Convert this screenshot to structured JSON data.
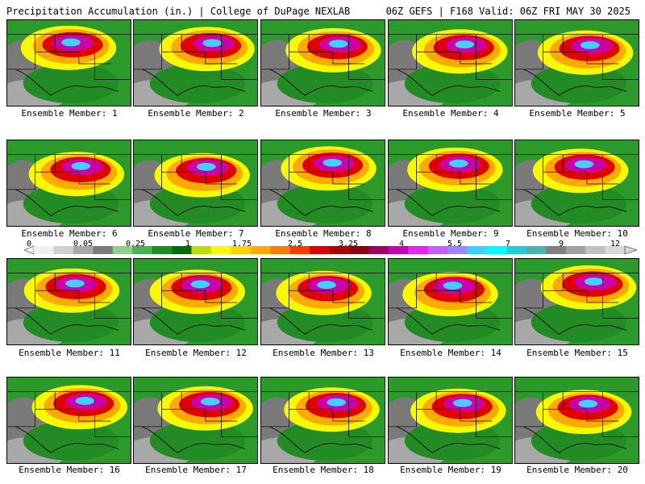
{
  "header": {
    "left": "Precipitation Accumulation (in.) | College of DuPage NEXLAB",
    "right": "06Z GEFS | F168 Valid: 06Z FRI MAY 30 2025"
  },
  "colorbar": {
    "labels": [
      "0",
      "0.05",
      "0.25",
      "1",
      "1.75",
      "2.5",
      "3.25",
      "4",
      "5.5",
      "7",
      "9",
      "12"
    ],
    "colors": [
      "#f0f0f0",
      "#d0d0d0",
      "#a8a8a8",
      "#7a7a7a",
      "#8fce8f",
      "#4fb04f",
      "#238b23",
      "#0c6a0c",
      "#b8e000",
      "#f8f800",
      "#ffd400",
      "#ffaa00",
      "#ff7a00",
      "#ff3a00",
      "#e00000",
      "#b00000",
      "#8a0010",
      "#a00060",
      "#cc00aa",
      "#ee22ee",
      "#c060ff",
      "#9a8aff",
      "#40d0ff",
      "#00ffff",
      "#20d0d0",
      "#50b0b0",
      "#808080",
      "#a0a0a0",
      "#c0c0c0",
      "#d8d8d8"
    ]
  },
  "panels": [
    {
      "caption": "Ensemble Member: 1"
    },
    {
      "caption": "Ensemble Member: 2"
    },
    {
      "caption": "Ensemble Member: 3"
    },
    {
      "caption": "Ensemble Member: 4"
    },
    {
      "caption": "Ensemble Member: 5"
    },
    {
      "caption": "Ensemble Member: 6"
    },
    {
      "caption": "Ensemble Member: 7"
    },
    {
      "caption": "Ensemble Member: 8"
    },
    {
      "caption": "Ensemble Member: 9"
    },
    {
      "caption": "Ensemble Member: 10"
    },
    {
      "caption": "Ensemble Member: 11"
    },
    {
      "caption": "Ensemble Member: 12"
    },
    {
      "caption": "Ensemble Member: 13"
    },
    {
      "caption": "Ensemble Member: 14"
    },
    {
      "caption": "Ensemble Member: 15"
    },
    {
      "caption": "Ensemble Member: 16"
    },
    {
      "caption": "Ensemble Member: 17"
    },
    {
      "caption": "Ensemble Member: 18"
    },
    {
      "caption": "Ensemble Member: 19"
    },
    {
      "caption": "Ensemble Member: 20"
    }
  ]
}
